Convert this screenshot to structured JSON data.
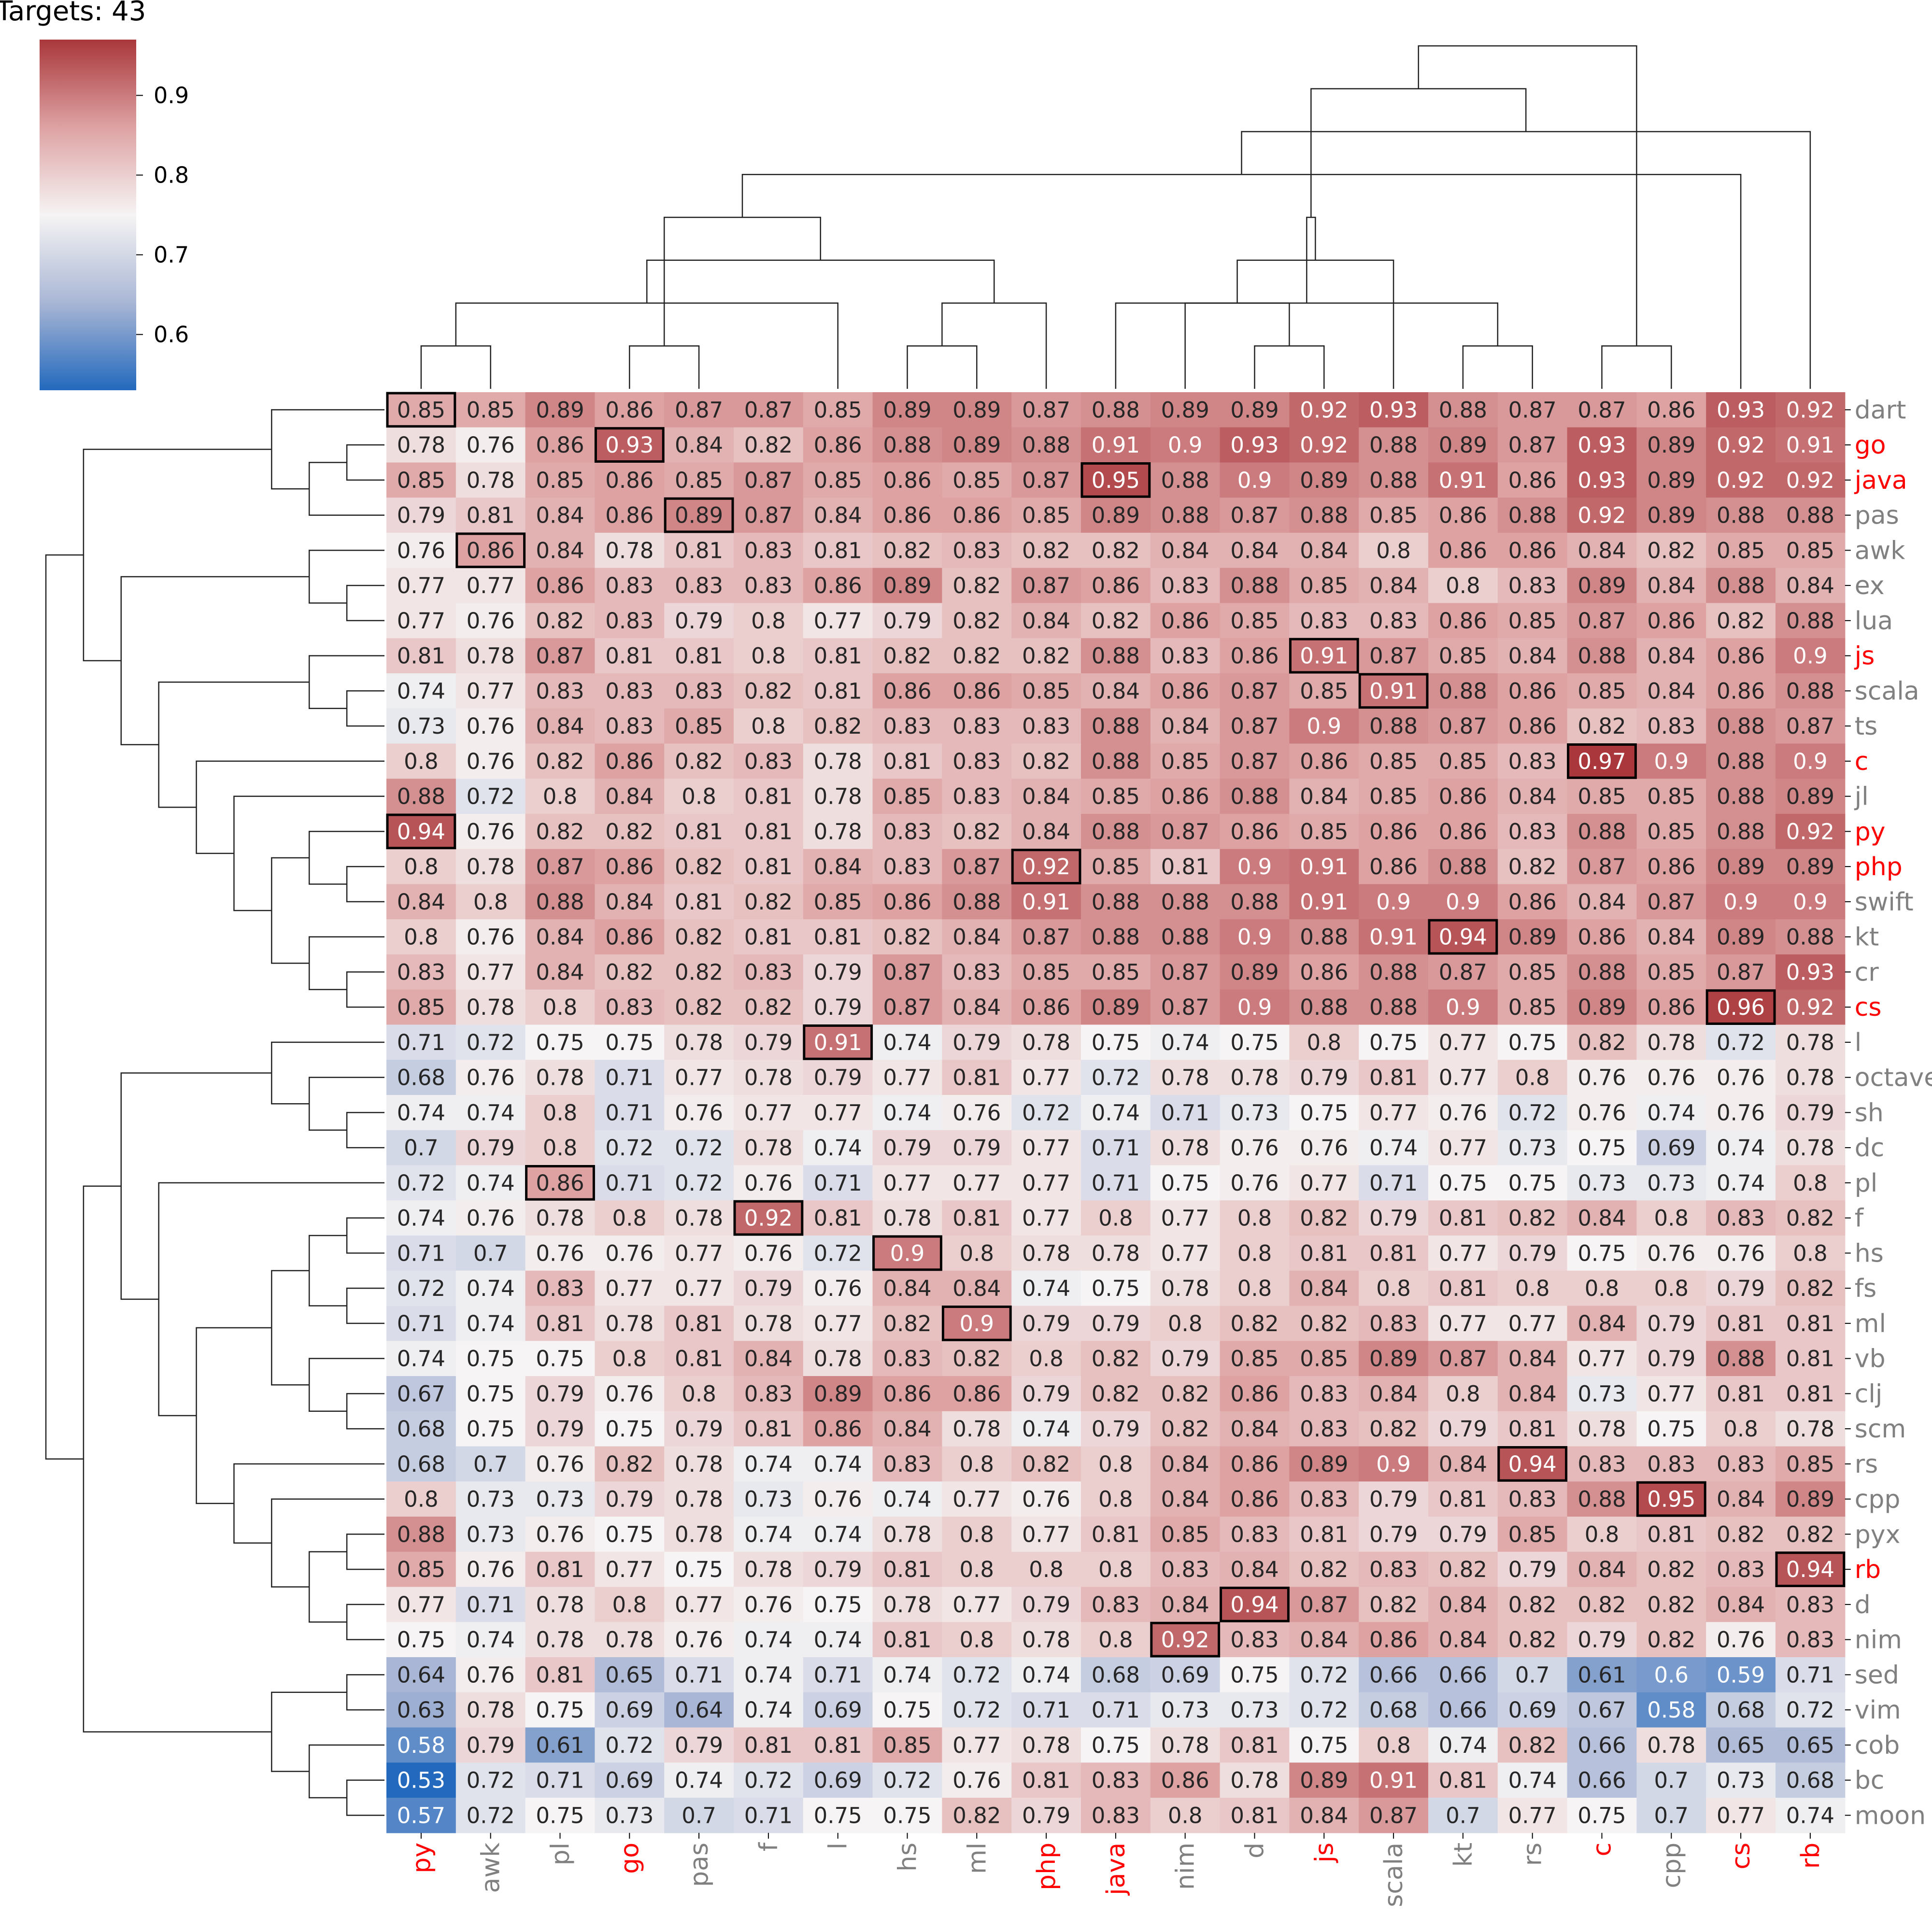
{
  "chart_data": {
    "type": "heatmap",
    "title": "Targets: 43",
    "colorbar": {
      "min": 0.53,
      "max": 0.97,
      "ticks": [
        "0.6",
        "0.7",
        "0.8",
        "0.9"
      ],
      "tick_values": [
        0.6,
        0.7,
        0.8,
        0.9
      ],
      "colormap": "vlag",
      "colors": [
        "#2369bd",
        "#a9b6d5",
        "#f6f4f4",
        "#dea2a3",
        "#a9373b"
      ]
    },
    "columns": [
      "py",
      "awk",
      "pl",
      "go",
      "pas",
      "f",
      "l",
      "hs",
      "ml",
      "php",
      "java",
      "nim",
      "d",
      "js",
      "scala",
      "kt",
      "rs",
      "c",
      "cpp",
      "cs",
      "rb"
    ],
    "rows": [
      "dart",
      "go",
      "java",
      "pas",
      "awk",
      "ex",
      "lua",
      "js",
      "scala",
      "ts",
      "c",
      "jl",
      "py",
      "php",
      "swift",
      "kt",
      "cr",
      "cs",
      "l",
      "octave",
      "sh",
      "dc",
      "pl",
      "f",
      "hs",
      "fs",
      "ml",
      "vb",
      "clj",
      "scm",
      "rs",
      "cpp",
      "pyx",
      "rb",
      "d",
      "nim",
      "sed",
      "vim",
      "cob",
      "bc",
      "moon"
    ],
    "highlighted_labels": [
      "py",
      "go",
      "php",
      "java",
      "js",
      "c",
      "cs",
      "rb"
    ],
    "label_colors": {
      "highlight": "#ff0000",
      "normal": "#808080"
    },
    "matrix": [
      [
        "0.85",
        "0.85",
        "0.89",
        "0.86",
        "0.87",
        "0.87",
        "0.85",
        "0.89",
        "0.89",
        "0.87",
        "0.88",
        "0.89",
        "0.89",
        "0.92",
        "0.93",
        "0.88",
        "0.87",
        "0.87",
        "0.86",
        "0.93",
        "0.92"
      ],
      [
        "0.78",
        "0.76",
        "0.86",
        "0.93",
        "0.84",
        "0.82",
        "0.86",
        "0.88",
        "0.89",
        "0.88",
        "0.91",
        "0.9",
        "0.93",
        "0.92",
        "0.88",
        "0.89",
        "0.87",
        "0.93",
        "0.89",
        "0.92",
        "0.91"
      ],
      [
        "0.85",
        "0.78",
        "0.85",
        "0.86",
        "0.85",
        "0.87",
        "0.85",
        "0.86",
        "0.85",
        "0.87",
        "0.95",
        "0.88",
        "0.9",
        "0.89",
        "0.88",
        "0.91",
        "0.86",
        "0.93",
        "0.89",
        "0.92",
        "0.92"
      ],
      [
        "0.79",
        "0.81",
        "0.84",
        "0.86",
        "0.89",
        "0.87",
        "0.84",
        "0.86",
        "0.86",
        "0.85",
        "0.89",
        "0.88",
        "0.87",
        "0.88",
        "0.85",
        "0.86",
        "0.88",
        "0.92",
        "0.89",
        "0.88",
        "0.88"
      ],
      [
        "0.76",
        "0.86",
        "0.84",
        "0.78",
        "0.81",
        "0.83",
        "0.81",
        "0.82",
        "0.83",
        "0.82",
        "0.82",
        "0.84",
        "0.84",
        "0.84",
        "0.8",
        "0.86",
        "0.86",
        "0.84",
        "0.82",
        "0.85",
        "0.85"
      ],
      [
        "0.77",
        "0.77",
        "0.86",
        "0.83",
        "0.83",
        "0.83",
        "0.86",
        "0.89",
        "0.82",
        "0.87",
        "0.86",
        "0.83",
        "0.88",
        "0.85",
        "0.84",
        "0.8",
        "0.83",
        "0.89",
        "0.84",
        "0.88",
        "0.84"
      ],
      [
        "0.77",
        "0.76",
        "0.82",
        "0.83",
        "0.79",
        "0.8",
        "0.77",
        "0.79",
        "0.82",
        "0.84",
        "0.82",
        "0.86",
        "0.85",
        "0.83",
        "0.83",
        "0.86",
        "0.85",
        "0.87",
        "0.86",
        "0.82",
        "0.88"
      ],
      [
        "0.81",
        "0.78",
        "0.87",
        "0.81",
        "0.81",
        "0.8",
        "0.81",
        "0.82",
        "0.82",
        "0.82",
        "0.88",
        "0.83",
        "0.86",
        "0.91",
        "0.87",
        "0.85",
        "0.84",
        "0.88",
        "0.84",
        "0.86",
        "0.9"
      ],
      [
        "0.74",
        "0.77",
        "0.83",
        "0.83",
        "0.83",
        "0.82",
        "0.81",
        "0.86",
        "0.86",
        "0.85",
        "0.84",
        "0.86",
        "0.87",
        "0.85",
        "0.91",
        "0.88",
        "0.86",
        "0.85",
        "0.84",
        "0.86",
        "0.88"
      ],
      [
        "0.73",
        "0.76",
        "0.84",
        "0.83",
        "0.85",
        "0.8",
        "0.82",
        "0.83",
        "0.83",
        "0.83",
        "0.88",
        "0.84",
        "0.87",
        "0.9",
        "0.88",
        "0.87",
        "0.86",
        "0.82",
        "0.83",
        "0.88",
        "0.87"
      ],
      [
        "0.8",
        "0.76",
        "0.82",
        "0.86",
        "0.82",
        "0.83",
        "0.78",
        "0.81",
        "0.83",
        "0.82",
        "0.88",
        "0.85",
        "0.87",
        "0.86",
        "0.85",
        "0.85",
        "0.83",
        "0.97",
        "0.9",
        "0.88",
        "0.9"
      ],
      [
        "0.88",
        "0.72",
        "0.8",
        "0.84",
        "0.8",
        "0.81",
        "0.78",
        "0.85",
        "0.83",
        "0.84",
        "0.85",
        "0.86",
        "0.88",
        "0.84",
        "0.85",
        "0.86",
        "0.84",
        "0.85",
        "0.85",
        "0.88",
        "0.89"
      ],
      [
        "0.94",
        "0.76",
        "0.82",
        "0.82",
        "0.81",
        "0.81",
        "0.78",
        "0.83",
        "0.82",
        "0.84",
        "0.88",
        "0.87",
        "0.86",
        "0.85",
        "0.86",
        "0.86",
        "0.83",
        "0.88",
        "0.85",
        "0.88",
        "0.92"
      ],
      [
        "0.8",
        "0.78",
        "0.87",
        "0.86",
        "0.82",
        "0.81",
        "0.84",
        "0.83",
        "0.87",
        "0.92",
        "0.85",
        "0.81",
        "0.9",
        "0.91",
        "0.86",
        "0.88",
        "0.82",
        "0.87",
        "0.86",
        "0.89",
        "0.89"
      ],
      [
        "0.84",
        "0.8",
        "0.88",
        "0.84",
        "0.81",
        "0.82",
        "0.85",
        "0.86",
        "0.88",
        "0.91",
        "0.88",
        "0.88",
        "0.88",
        "0.91",
        "0.9",
        "0.9",
        "0.86",
        "0.84",
        "0.87",
        "0.9",
        "0.9"
      ],
      [
        "0.8",
        "0.76",
        "0.84",
        "0.86",
        "0.82",
        "0.81",
        "0.81",
        "0.82",
        "0.84",
        "0.87",
        "0.88",
        "0.88",
        "0.9",
        "0.88",
        "0.91",
        "0.94",
        "0.89",
        "0.86",
        "0.84",
        "0.89",
        "0.88"
      ],
      [
        "0.83",
        "0.77",
        "0.84",
        "0.82",
        "0.82",
        "0.83",
        "0.79",
        "0.87",
        "0.83",
        "0.85",
        "0.85",
        "0.87",
        "0.89",
        "0.86",
        "0.88",
        "0.87",
        "0.85",
        "0.88",
        "0.85",
        "0.87",
        "0.93"
      ],
      [
        "0.85",
        "0.78",
        "0.8",
        "0.83",
        "0.82",
        "0.82",
        "0.79",
        "0.87",
        "0.84",
        "0.86",
        "0.89",
        "0.87",
        "0.9",
        "0.88",
        "0.88",
        "0.9",
        "0.85",
        "0.89",
        "0.86",
        "0.96",
        "0.92"
      ],
      [
        "0.71",
        "0.72",
        "0.75",
        "0.75",
        "0.78",
        "0.79",
        "0.91",
        "0.74",
        "0.79",
        "0.78",
        "0.75",
        "0.74",
        "0.75",
        "0.8",
        "0.75",
        "0.77",
        "0.75",
        "0.82",
        "0.78",
        "0.72",
        "0.78"
      ],
      [
        "0.68",
        "0.76",
        "0.78",
        "0.71",
        "0.77",
        "0.78",
        "0.79",
        "0.77",
        "0.81",
        "0.77",
        "0.72",
        "0.78",
        "0.78",
        "0.79",
        "0.81",
        "0.77",
        "0.8",
        "0.76",
        "0.76",
        "0.76",
        "0.78"
      ],
      [
        "0.74",
        "0.74",
        "0.8",
        "0.71",
        "0.76",
        "0.77",
        "0.77",
        "0.74",
        "0.76",
        "0.72",
        "0.74",
        "0.71",
        "0.73",
        "0.75",
        "0.77",
        "0.76",
        "0.72",
        "0.76",
        "0.74",
        "0.76",
        "0.79"
      ],
      [
        "0.7",
        "0.79",
        "0.8",
        "0.72",
        "0.72",
        "0.78",
        "0.74",
        "0.79",
        "0.79",
        "0.77",
        "0.71",
        "0.78",
        "0.76",
        "0.76",
        "0.74",
        "0.77",
        "0.73",
        "0.75",
        "0.69",
        "0.74",
        "0.78"
      ],
      [
        "0.72",
        "0.74",
        "0.86",
        "0.71",
        "0.72",
        "0.76",
        "0.71",
        "0.77",
        "0.77",
        "0.77",
        "0.71",
        "0.75",
        "0.76",
        "0.77",
        "0.71",
        "0.75",
        "0.75",
        "0.73",
        "0.73",
        "0.74",
        "0.8"
      ],
      [
        "0.74",
        "0.76",
        "0.78",
        "0.8",
        "0.78",
        "0.92",
        "0.81",
        "0.78",
        "0.81",
        "0.77",
        "0.8",
        "0.77",
        "0.8",
        "0.82",
        "0.79",
        "0.81",
        "0.82",
        "0.84",
        "0.8",
        "0.83",
        "0.82"
      ],
      [
        "0.71",
        "0.7",
        "0.76",
        "0.76",
        "0.77",
        "0.76",
        "0.72",
        "0.9",
        "0.8",
        "0.78",
        "0.78",
        "0.77",
        "0.8",
        "0.81",
        "0.81",
        "0.77",
        "0.79",
        "0.75",
        "0.76",
        "0.76",
        "0.8"
      ],
      [
        "0.72",
        "0.74",
        "0.83",
        "0.77",
        "0.77",
        "0.79",
        "0.76",
        "0.84",
        "0.84",
        "0.74",
        "0.75",
        "0.78",
        "0.8",
        "0.84",
        "0.8",
        "0.81",
        "0.8",
        "0.8",
        "0.8",
        "0.79",
        "0.82"
      ],
      [
        "0.71",
        "0.74",
        "0.81",
        "0.78",
        "0.81",
        "0.78",
        "0.77",
        "0.82",
        "0.9",
        "0.79",
        "0.79",
        "0.8",
        "0.82",
        "0.82",
        "0.83",
        "0.77",
        "0.77",
        "0.84",
        "0.79",
        "0.81",
        "0.81"
      ],
      [
        "0.74",
        "0.75",
        "0.75",
        "0.8",
        "0.81",
        "0.84",
        "0.78",
        "0.83",
        "0.82",
        "0.8",
        "0.82",
        "0.79",
        "0.85",
        "0.85",
        "0.89",
        "0.87",
        "0.84",
        "0.77",
        "0.79",
        "0.88",
        "0.81"
      ],
      [
        "0.67",
        "0.75",
        "0.79",
        "0.76",
        "0.8",
        "0.83",
        "0.89",
        "0.86",
        "0.86",
        "0.79",
        "0.82",
        "0.82",
        "0.86",
        "0.83",
        "0.84",
        "0.8",
        "0.84",
        "0.73",
        "0.77",
        "0.81",
        "0.81"
      ],
      [
        "0.68",
        "0.75",
        "0.79",
        "0.75",
        "0.79",
        "0.81",
        "0.86",
        "0.84",
        "0.78",
        "0.74",
        "0.79",
        "0.82",
        "0.84",
        "0.83",
        "0.82",
        "0.79",
        "0.81",
        "0.78",
        "0.75",
        "0.8",
        "0.78"
      ],
      [
        "0.68",
        "0.7",
        "0.76",
        "0.82",
        "0.78",
        "0.74",
        "0.74",
        "0.83",
        "0.8",
        "0.82",
        "0.8",
        "0.84",
        "0.86",
        "0.89",
        "0.9",
        "0.84",
        "0.94",
        "0.83",
        "0.83",
        "0.83",
        "0.85"
      ],
      [
        "0.8",
        "0.73",
        "0.73",
        "0.79",
        "0.78",
        "0.73",
        "0.76",
        "0.74",
        "0.77",
        "0.76",
        "0.8",
        "0.84",
        "0.86",
        "0.83",
        "0.79",
        "0.81",
        "0.83",
        "0.88",
        "0.95",
        "0.84",
        "0.89"
      ],
      [
        "0.88",
        "0.73",
        "0.76",
        "0.75",
        "0.78",
        "0.74",
        "0.74",
        "0.78",
        "0.8",
        "0.77",
        "0.81",
        "0.85",
        "0.83",
        "0.81",
        "0.79",
        "0.79",
        "0.85",
        "0.8",
        "0.81",
        "0.82",
        "0.82"
      ],
      [
        "0.85",
        "0.76",
        "0.81",
        "0.77",
        "0.75",
        "0.78",
        "0.79",
        "0.81",
        "0.8",
        "0.8",
        "0.8",
        "0.83",
        "0.84",
        "0.82",
        "0.83",
        "0.82",
        "0.79",
        "0.84",
        "0.82",
        "0.83",
        "0.94"
      ],
      [
        "0.77",
        "0.71",
        "0.78",
        "0.8",
        "0.77",
        "0.76",
        "0.75",
        "0.78",
        "0.77",
        "0.79",
        "0.83",
        "0.84",
        "0.94",
        "0.87",
        "0.82",
        "0.84",
        "0.82",
        "0.82",
        "0.82",
        "0.84",
        "0.83"
      ],
      [
        "0.75",
        "0.74",
        "0.78",
        "0.78",
        "0.76",
        "0.74",
        "0.74",
        "0.81",
        "0.8",
        "0.78",
        "0.8",
        "0.92",
        "0.83",
        "0.84",
        "0.86",
        "0.84",
        "0.82",
        "0.79",
        "0.82",
        "0.76",
        "0.83"
      ],
      [
        "0.64",
        "0.76",
        "0.81",
        "0.65",
        "0.71",
        "0.74",
        "0.71",
        "0.74",
        "0.72",
        "0.74",
        "0.68",
        "0.69",
        "0.75",
        "0.72",
        "0.66",
        "0.66",
        "0.7",
        "0.61",
        "0.6",
        "0.59",
        "0.71"
      ],
      [
        "0.63",
        "0.78",
        "0.75",
        "0.69",
        "0.64",
        "0.74",
        "0.69",
        "0.75",
        "0.72",
        "0.71",
        "0.71",
        "0.73",
        "0.73",
        "0.72",
        "0.68",
        "0.66",
        "0.69",
        "0.67",
        "0.58",
        "0.68",
        "0.72"
      ],
      [
        "0.58",
        "0.79",
        "0.61",
        "0.72",
        "0.79",
        "0.81",
        "0.81",
        "0.85",
        "0.77",
        "0.78",
        "0.75",
        "0.78",
        "0.81",
        "0.75",
        "0.8",
        "0.74",
        "0.82",
        "0.66",
        "0.78",
        "0.65",
        "0.65"
      ],
      [
        "0.53",
        "0.72",
        "0.71",
        "0.69",
        "0.74",
        "0.72",
        "0.69",
        "0.72",
        "0.76",
        "0.81",
        "0.83",
        "0.86",
        "0.78",
        "0.89",
        "0.91",
        "0.81",
        "0.74",
        "0.66",
        "0.7",
        "0.73",
        "0.68"
      ],
      [
        "0.57",
        "0.72",
        "0.75",
        "0.73",
        "0.7",
        "0.71",
        "0.75",
        "0.75",
        "0.82",
        "0.79",
        "0.83",
        "0.8",
        "0.81",
        "0.84",
        "0.87",
        "0.7",
        "0.77",
        "0.75",
        "0.7",
        "0.77",
        "0.74"
      ]
    ],
    "boxed_cells": [
      [
        0,
        0
      ],
      [
        1,
        3
      ],
      [
        2,
        10
      ],
      [
        3,
        4
      ],
      [
        4,
        1
      ],
      [
        7,
        13
      ],
      [
        8,
        14
      ],
      [
        10,
        17
      ],
      [
        12,
        0
      ],
      [
        13,
        9
      ],
      [
        15,
        15
      ],
      [
        17,
        19
      ],
      [
        18,
        6
      ],
      [
        22,
        2
      ],
      [
        23,
        5
      ],
      [
        24,
        7
      ],
      [
        26,
        8
      ],
      [
        30,
        16
      ],
      [
        31,
        18
      ],
      [
        33,
        20
      ],
      [
        34,
        12
      ],
      [
        35,
        11
      ]
    ],
    "col_dendrogram": [
      [
        0,
        1
      ],
      [
        3,
        4
      ],
      [
        -3,
        5
      ],
      [
        2,
        -4
      ],
      [
        7,
        8
      ],
      [
        -5,
        9
      ],
      [
        -1,
        6
      ],
      [
        -6,
        -7
      ],
      [
        12,
        13
      ],
      [
        11,
        -9
      ],
      [
        15,
        16
      ],
      [
        -10,
        14
      ],
      [
        10,
        -11
      ],
      [
        -12,
        -13
      ],
      [
        -2,
        -8
      ],
      [
        17,
        18
      ],
      [
        -15,
        19
      ],
      [
        20,
        -17
      ],
      [
        -14,
        -18
      ],
      [
        -16,
        -19
      ]
    ],
    "row_dendrogram": [
      [
        1,
        2
      ],
      [
        3,
        -1
      ],
      [
        0,
        -2
      ],
      [
        13,
        14
      ],
      [
        12,
        -4
      ],
      [
        16,
        17
      ],
      [
        15,
        -6
      ],
      [
        -5,
        -7
      ],
      [
        11,
        -8
      ],
      [
        10,
        -9
      ],
      [
        8,
        9
      ],
      [
        7,
        -11
      ],
      [
        -10,
        -12
      ],
      [
        5,
        6
      ],
      [
        4,
        -14
      ],
      [
        -13,
        -15
      ],
      [
        -3,
        -16
      ],
      [
        20,
        21
      ],
      [
        19,
        -18
      ],
      [
        18,
        -19
      ],
      [
        23,
        24
      ],
      [
        25,
        26
      ],
      [
        -21,
        -22
      ],
      [
        28,
        29
      ],
      [
        27,
        -24
      ],
      [
        -23,
        -25
      ],
      [
        32,
        33
      ],
      [
        34,
        35
      ],
      [
        -27,
        -28
      ],
      [
        31,
        -29
      ],
      [
        30,
        -30
      ],
      [
        -26,
        -31
      ],
      [
        22,
        -32
      ],
      [
        -20,
        -33
      ],
      [
        36,
        37
      ],
      [
        39,
        40
      ],
      [
        38,
        -36
      ],
      [
        -35,
        -37
      ],
      [
        -34,
        -38
      ],
      [
        -17,
        -39
      ]
    ]
  }
}
